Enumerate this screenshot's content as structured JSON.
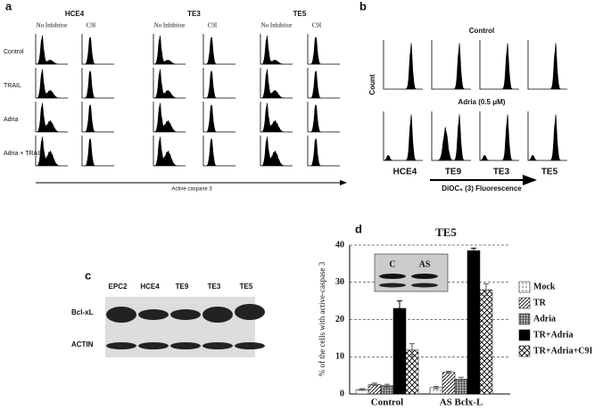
{
  "panel_a": {
    "label": "a",
    "groups": [
      "HCE4",
      "TE3",
      "TE5"
    ],
    "subcolumns": [
      "No Inhibitor",
      "C9I"
    ],
    "rows": [
      "Control",
      "TRAIL",
      "Adria",
      "Adria + TRAIL"
    ],
    "x_axis": "Active caspase 3"
  },
  "panel_b": {
    "label": "b",
    "row_titles": [
      "Control",
      "Adria (0.5 μM)"
    ],
    "y_axis": "Count",
    "cells": [
      "HCE4",
      "TE9",
      "TE3",
      "TE5"
    ],
    "x_axis": "DiOC₆ (3) Fluorescence"
  },
  "panel_c": {
    "label": "c",
    "lanes": [
      "EPC2",
      "HCE4",
      "TE9",
      "TE3",
      "TE5"
    ],
    "rows": [
      "Bcl-xL",
      "ACTIN"
    ]
  },
  "chart_data": {
    "type": "bar",
    "panel_label": "d",
    "title": "TE5",
    "y_label": "% of the cells with active-caspase 3",
    "categories": [
      "Control",
      "AS Bclx-L"
    ],
    "series": [
      {
        "name": "Mock",
        "pattern": "dots",
        "values": [
          1.2,
          1.7
        ],
        "errors": [
          0.2,
          0.3
        ]
      },
      {
        "name": "TR",
        "pattern": "diagonal",
        "values": [
          2.6,
          5.8
        ],
        "errors": [
          0.3,
          0.3
        ]
      },
      {
        "name": "Adria",
        "pattern": "grid",
        "values": [
          2.2,
          4.0
        ],
        "errors": [
          0.4,
          0.5
        ]
      },
      {
        "name": "TR+Adria",
        "pattern": "solid",
        "values": [
          23,
          38.5
        ],
        "errors": [
          2,
          0.7
        ]
      },
      {
        "name": "TR+Adria+C9I",
        "pattern": "cross",
        "values": [
          11.8,
          28
        ],
        "errors": [
          1.7,
          1.6
        ]
      }
    ],
    "ylim": [
      0,
      40
    ],
    "yticks": [
      0,
      10,
      20,
      30,
      40
    ],
    "grid": true,
    "inset_labels": [
      "C",
      "AS"
    ]
  }
}
